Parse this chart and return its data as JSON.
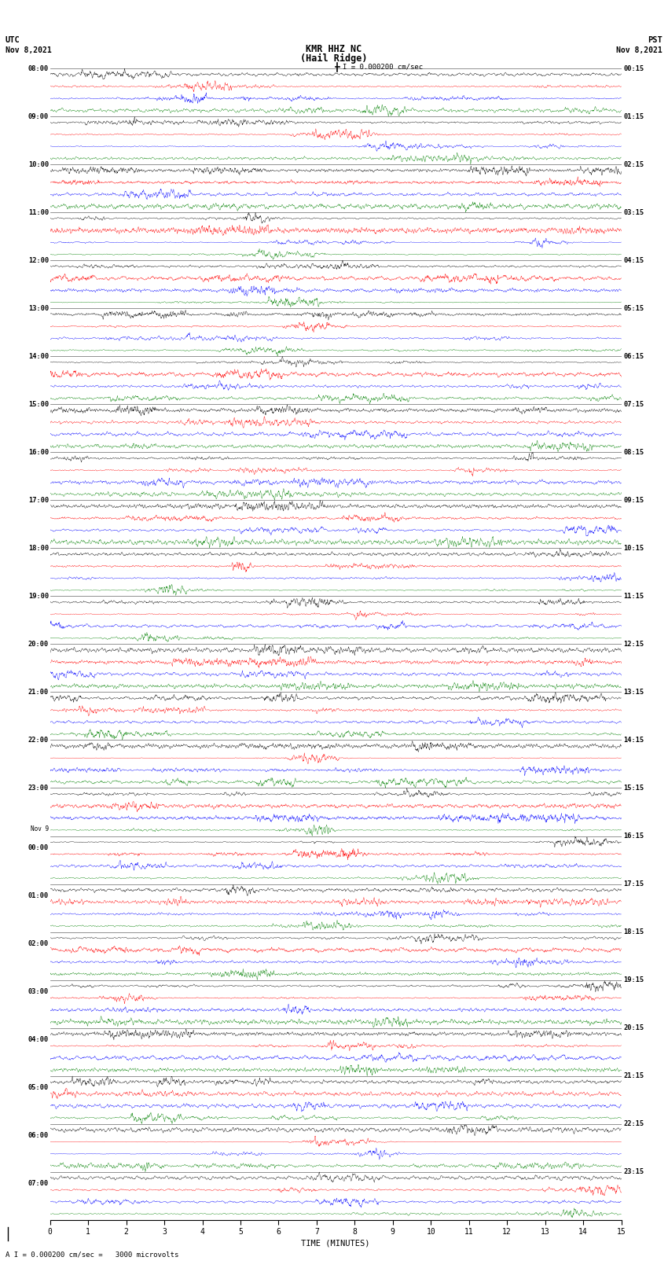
{
  "title_line1": "KMR HHZ NC",
  "title_line2": "(Hail Ridge)",
  "scale_label": "I = 0.000200 cm/sec",
  "left_label_line1": "UTC",
  "left_label_line2": "Nov 8,2021",
  "right_label_line1": "PST",
  "right_label_line2": "Nov 8,2021",
  "bottom_label": "TIME (MINUTES)",
  "bottom_scale": "A I = 0.000200 cm/sec =   3000 microvolts",
  "utc_times_left": [
    "08:00",
    "",
    "",
    "",
    "09:00",
    "",
    "",
    "",
    "10:00",
    "",
    "",
    "",
    "11:00",
    "",
    "",
    "",
    "12:00",
    "",
    "",
    "",
    "13:00",
    "",
    "",
    "",
    "14:00",
    "",
    "",
    "",
    "15:00",
    "",
    "",
    "",
    "16:00",
    "",
    "",
    "",
    "17:00",
    "",
    "",
    "",
    "18:00",
    "",
    "",
    "",
    "19:00",
    "",
    "",
    "",
    "20:00",
    "",
    "",
    "",
    "21:00",
    "",
    "",
    "",
    "22:00",
    "",
    "",
    "",
    "23:00",
    "",
    "",
    "",
    "Nov 9",
    "00:00",
    "",
    "",
    "",
    "01:00",
    "",
    "",
    "",
    "02:00",
    "",
    "",
    "",
    "03:00",
    "",
    "",
    "",
    "04:00",
    "",
    "",
    "",
    "05:00",
    "",
    "",
    "",
    "06:00",
    "",
    "",
    "",
    "07:00",
    "",
    "",
    ""
  ],
  "pst_times_right": [
    "00:15",
    "",
    "",
    "",
    "01:15",
    "",
    "",
    "",
    "02:15",
    "",
    "",
    "",
    "03:15",
    "",
    "",
    "",
    "04:15",
    "",
    "",
    "",
    "05:15",
    "",
    "",
    "",
    "06:15",
    "",
    "",
    "",
    "07:15",
    "",
    "",
    "",
    "08:15",
    "",
    "",
    "",
    "09:15",
    "",
    "",
    "",
    "10:15",
    "",
    "",
    "",
    "11:15",
    "",
    "",
    "",
    "12:15",
    "",
    "",
    "",
    "13:15",
    "",
    "",
    "",
    "14:15",
    "",
    "",
    "",
    "15:15",
    "",
    "",
    "",
    "16:15",
    "",
    "",
    "",
    "17:15",
    "",
    "",
    "",
    "18:15",
    "",
    "",
    "",
    "19:15",
    "",
    "",
    "",
    "20:15",
    "",
    "",
    "",
    "21:15",
    "",
    "",
    "",
    "22:15",
    "",
    "",
    "",
    "23:15",
    "",
    "",
    ""
  ],
  "n_traces": 96,
  "minutes_per_trace": 15,
  "x_ticks": [
    0,
    1,
    2,
    3,
    4,
    5,
    6,
    7,
    8,
    9,
    10,
    11,
    12,
    13,
    14,
    15
  ],
  "colors": [
    "black",
    "red",
    "blue",
    "green"
  ],
  "background_color": "white",
  "trace_amplitude": 0.48,
  "fig_width": 8.5,
  "fig_height": 16.13,
  "dpi": 100
}
